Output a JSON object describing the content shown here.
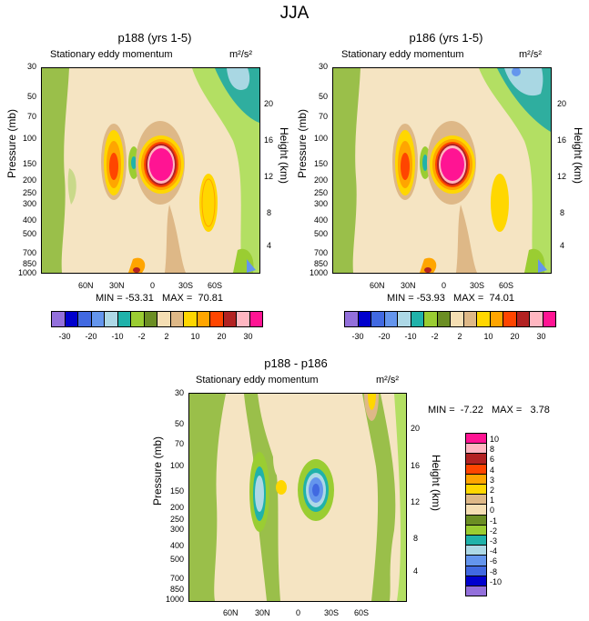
{
  "chart_data": {
    "type": "heatmap",
    "title": "JJA",
    "panels": [
      {
        "title": "p188 (yrs 1-5)",
        "subtitle": "Stationary eddy momentum",
        "units": "m²/s²",
        "ylabel": "Pressure (mb)",
        "ylabel_right": "Height (km)",
        "stats": "MIN = -53.31   MAX =  70.81"
      },
      {
        "title": "p186 (yrs 1-5)",
        "subtitle": "Stationary eddy momentum",
        "units": "m²/s²",
        "ylabel": "Pressure (mb)",
        "ylabel_right": "Height (km)",
        "stats": "MIN = -53.93   MAX =  74.01"
      },
      {
        "title": "p188 - p186",
        "subtitle": "Stationary eddy momentum",
        "units": "m²/s²",
        "ylabel": "Pressure (mb)",
        "ylabel_right": "Height (km)",
        "stats": "MIN =  -7.22   MAX =   3.78"
      }
    ],
    "pressure_ticks": [
      "30",
      "50",
      "70",
      "100",
      "150",
      "200",
      "250",
      "300",
      "400",
      "500",
      "700",
      "850",
      "1000"
    ],
    "height_ticks": [
      "20",
      "16",
      "12",
      "8",
      "4"
    ],
    "lat_ticks": [
      "60N",
      "30N",
      "0",
      "30S",
      "60S"
    ],
    "colorbar_top": {
      "labels": [
        "-30",
        "-20",
        "-10",
        "-2",
        "2",
        "10",
        "20",
        "30"
      ],
      "colors": [
        "#9370db",
        "#0000cd",
        "#4169e1",
        "#6495ed",
        "#add8e6",
        "#20b2aa",
        "#9acd32",
        "#6b8e23",
        "#f5deb3",
        "#deb887",
        "#ffd700",
        "#ffa500",
        "#ff4500",
        "#b22222",
        "#ffb6c1",
        "#ff1493"
      ]
    },
    "colorbar_diff": {
      "labels": [
        "10",
        "8",
        "6",
        "4",
        "3",
        "2",
        "1",
        "0",
        "-1",
        "-2",
        "-3",
        "-4",
        "-6",
        "-8",
        "-10"
      ],
      "colors": [
        "#ff1493",
        "#ffb6c1",
        "#b22222",
        "#ff4500",
        "#ffa500",
        "#ffd700",
        "#deb887",
        "#f5deb3",
        "#6b8e23",
        "#9acd32",
        "#20b2aa",
        "#add8e6",
        "#6495ed",
        "#4169e1",
        "#0000cd",
        "#9370db"
      ]
    }
  }
}
